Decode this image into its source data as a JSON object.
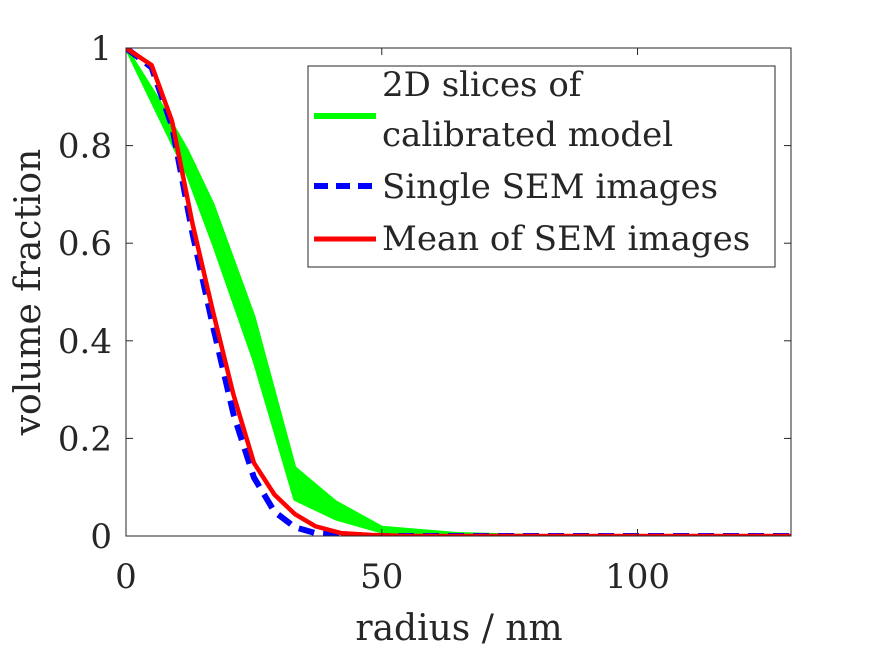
{
  "chart_data": {
    "type": "line",
    "xlabel": "radius / nm",
    "ylabel": "volume fraction",
    "xlim": [
      0,
      130
    ],
    "ylim": [
      0,
      1
    ],
    "xticks": [
      0,
      50,
      100
    ],
    "yticks": [
      0,
      0.2,
      0.4,
      0.6,
      0.8,
      1
    ],
    "xtick_labels": [
      "0",
      "50",
      "100"
    ],
    "ytick_labels": [
      "0",
      "0.2",
      "0.4",
      "0.6",
      "0.8",
      "1"
    ],
    "grid": false,
    "legend_position": "top-right",
    "series": [
      {
        "name": "2D slices of calibrated model",
        "legend_lines": [
          "2D slices of",
          "calibrated model"
        ],
        "style": "band",
        "color": "#00ff00",
        "upper": [
          [
            0,
            1.0
          ],
          [
            6,
            0.9
          ],
          [
            12,
            0.79
          ],
          [
            17,
            0.68
          ],
          [
            25,
            0.45
          ],
          [
            33,
            0.14
          ],
          [
            41,
            0.07
          ],
          [
            50,
            0.018
          ],
          [
            65,
            0.005
          ],
          [
            80,
            0.001
          ],
          [
            130,
            0.0
          ]
        ],
        "lower": [
          [
            0,
            1.0
          ],
          [
            6,
            0.87
          ],
          [
            12,
            0.74
          ],
          [
            17,
            0.6
          ],
          [
            25,
            0.36
          ],
          [
            33,
            0.075
          ],
          [
            41,
            0.035
          ],
          [
            50,
            0.008
          ],
          [
            65,
            0.002
          ],
          [
            80,
            0.0
          ],
          [
            130,
            0.0
          ]
        ]
      },
      {
        "name": "Single SEM images",
        "style": "dashed",
        "color": "#0000ff",
        "x": [
          0,
          5,
          9,
          13,
          17,
          21,
          25,
          29,
          33,
          37,
          42,
          48,
          55,
          70,
          90,
          130
        ],
        "y": [
          1.0,
          0.96,
          0.84,
          0.62,
          0.43,
          0.25,
          0.12,
          0.05,
          0.018,
          0.006,
          0.002,
          0.0,
          0.0,
          0.0,
          0.0,
          0.0
        ]
      },
      {
        "name": "Mean of SEM images",
        "style": "solid",
        "color": "#ff0000",
        "x": [
          0,
          5,
          9,
          13,
          17,
          21,
          25,
          29,
          33,
          37,
          42,
          48,
          55,
          70,
          90,
          130
        ],
        "y": [
          1.0,
          0.965,
          0.85,
          0.64,
          0.46,
          0.29,
          0.15,
          0.085,
          0.045,
          0.02,
          0.006,
          0.002,
          0.0,
          0.0,
          0.0,
          0.0
        ]
      }
    ]
  }
}
